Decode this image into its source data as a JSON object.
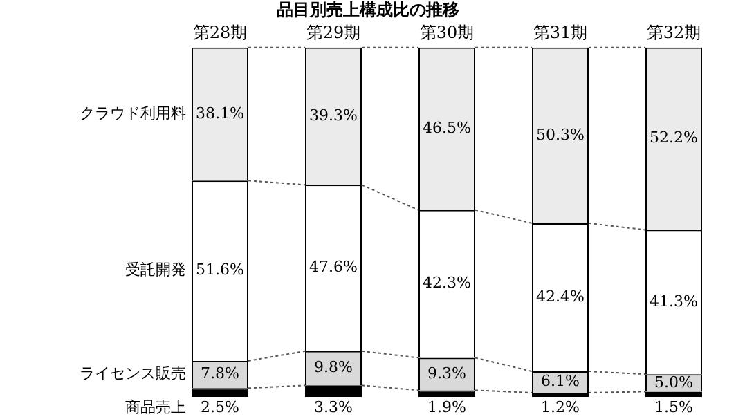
{
  "chart_data": {
    "type": "bar",
    "stacked": true,
    "title": "品目別売上構成比の推移",
    "categories": [
      "第28期",
      "第29期",
      "第30期",
      "第31期",
      "第32期"
    ],
    "tick_labels": "x",
    "grid": false,
    "legend": false,
    "series": [
      {
        "name": "商品売上",
        "color": "#000000",
        "values": [
          2.5,
          3.3,
          1.9,
          1.2,
          1.5
        ],
        "value_labels": [
          "2.5%",
          "3.3%",
          "1.9%",
          "1.2%",
          "1.5%"
        ]
      },
      {
        "name": "ライセンス販売",
        "color": "#d9d9d9",
        "values": [
          7.8,
          9.8,
          9.3,
          6.1,
          5.0
        ],
        "value_labels": [
          "7.8%",
          "9.8%",
          "9.3%",
          "6.1%",
          "5.0%"
        ]
      },
      {
        "name": "受託開発",
        "color": "#ffffff",
        "values": [
          51.6,
          47.6,
          42.3,
          42.4,
          41.3
        ],
        "value_labels": [
          "51.6%",
          "47.6%",
          "42.3%",
          "42.4%",
          "41.3%"
        ]
      },
      {
        "name": "クラウド利用料",
        "color": "#ebebeb",
        "values": [
          38.1,
          39.3,
          46.5,
          50.3,
          52.2
        ],
        "value_labels": [
          "38.1%",
          "39.3%",
          "46.5%",
          "50.3%",
          "52.2%"
        ]
      }
    ]
  }
}
